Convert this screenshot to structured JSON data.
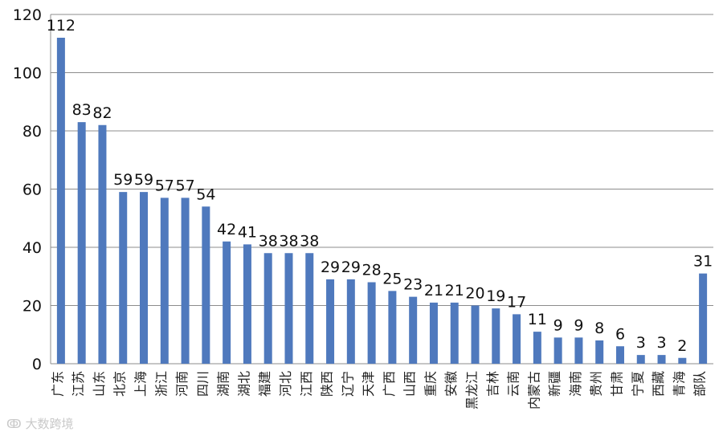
{
  "chart_data": {
    "type": "bar",
    "categories": [
      "广东",
      "江苏",
      "山东",
      "北京",
      "上海",
      "浙江",
      "河南",
      "四川",
      "湖南",
      "湖北",
      "福建",
      "河北",
      "江西",
      "陕西",
      "辽宁",
      "天津",
      "广西",
      "山西",
      "重庆",
      "安徽",
      "黑龙江",
      "吉林",
      "云南",
      "内蒙古",
      "新疆",
      "海南",
      "贵州",
      "甘肃",
      "宁夏",
      "西藏",
      "青海",
      "部队"
    ],
    "values": [
      112,
      83,
      82,
      59,
      59,
      57,
      57,
      54,
      42,
      41,
      38,
      38,
      38,
      29,
      29,
      28,
      25,
      23,
      21,
      21,
      20,
      19,
      17,
      11,
      9,
      9,
      8,
      6,
      3,
      3,
      2,
      31
    ],
    "ylim": [
      0,
      120
    ],
    "yticks": [
      0,
      20,
      40,
      60,
      80,
      100,
      120
    ],
    "grid": true,
    "bar_color": "#4f79bd"
  },
  "watermark": {
    "text": "大数跨境",
    "icon": "brand-logo-icon"
  }
}
